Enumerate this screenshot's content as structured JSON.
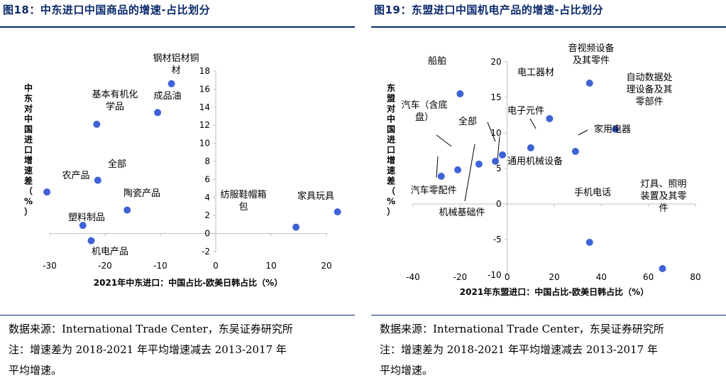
{
  "charts": [
    {
      "title": "图18：中东进口中国商品的增速-占比划分",
      "source_lines": [
        "数据来源：International Trade Center，东吴证券研究所",
        "注：增速差为 2018-2021 年平均增速减去 2013-2017 年",
        "平均增速。"
      ]
    },
    {
      "title": "图19：东盟进口中国机电产品的增速-占比划分",
      "source_lines": [
        "数据来源：International Trade Center，东吴证券研究所",
        "注：增速差为 2018-2021 年平均增速减去 2013-2017 年",
        "平均增速。"
      ]
    }
  ],
  "chart_data": [
    {
      "type": "scatter",
      "title": "图18：中东进口中国商品的增速-占比划分",
      "xlabel": "2021年中东进口：中国占比-欧美日韩占比（%）",
      "ylabel": "中东对中国进口增速差（%）",
      "xlim": [
        -30,
        20
      ],
      "ylim": [
        -2,
        18
      ],
      "xticks": [
        -30,
        -20,
        -10,
        0,
        10,
        20
      ],
      "yticks": [
        -2,
        0,
        2,
        4,
        6,
        8,
        10,
        12,
        14,
        16,
        18
      ],
      "grid": false,
      "color": "#3f63d6",
      "points": [
        {
          "label": "钢材铝材铜材",
          "x": -8,
          "y": 16.6
        },
        {
          "label": "成品油",
          "x": -10.5,
          "y": 13.4
        },
        {
          "label": "基本有机化学品",
          "x": -21.5,
          "y": 12.1
        },
        {
          "label": "全部",
          "x": -21.3,
          "y": 5.9
        },
        {
          "label": "农产品",
          "x": -30.5,
          "y": 4.6
        },
        {
          "label": "陶瓷产品",
          "x": -16,
          "y": 2.6
        },
        {
          "label": "塑料制品",
          "x": -24,
          "y": 0.9
        },
        {
          "label": "机电产品",
          "x": -22.5,
          "y": -0.8
        },
        {
          "label": "纺服鞋帽箱包",
          "x": 14.5,
          "y": 0.7
        },
        {
          "label": "家具玩具",
          "x": 22,
          "y": 2.4
        }
      ]
    },
    {
      "type": "scatter",
      "title": "图19：东盟进口中国机电产品的增速-占比划分",
      "xlabel": "2021年东盟进口：中国占比-欧美日韩占比（%）",
      "ylabel": "东盟对中国进口增速差（%）",
      "xlim": [
        -40,
        80
      ],
      "ylim": [
        -10,
        20
      ],
      "xticks": [
        -40,
        -20,
        0,
        20,
        40,
        60,
        80
      ],
      "yticks": [
        -10,
        -5,
        0,
        5,
        10,
        15,
        20
      ],
      "grid": false,
      "color": "#3f63d6",
      "points": [
        {
          "label": "船舶",
          "x": -20,
          "y": 15.5
        },
        {
          "label": "汽车（含底盘）",
          "x": -21,
          "y": 4.8
        },
        {
          "label": "汽车零配件",
          "x": -28,
          "y": 3.9
        },
        {
          "label": "全部",
          "x": -5,
          "y": 6
        },
        {
          "label": "机械基础件",
          "x": -12,
          "y": 5.6
        },
        {
          "label": "通用机械设备",
          "x": -2,
          "y": 6.9
        },
        {
          "label": "电工器材",
          "x": 18,
          "y": 12
        },
        {
          "label": "电子元件",
          "x": 10,
          "y": 7.9
        },
        {
          "label": "音视频设备及其零件",
          "x": 35,
          "y": 17
        },
        {
          "label": "自动数据处理设备及其零部件",
          "x": 46,
          "y": 10.5
        },
        {
          "label": "家用电器",
          "x": 29,
          "y": 7.4
        },
        {
          "label": "手机电话",
          "x": 35,
          "y": -5.4
        },
        {
          "label": "灯具、照明装置及其零件",
          "x": 66,
          "y": -9.1
        }
      ]
    }
  ]
}
